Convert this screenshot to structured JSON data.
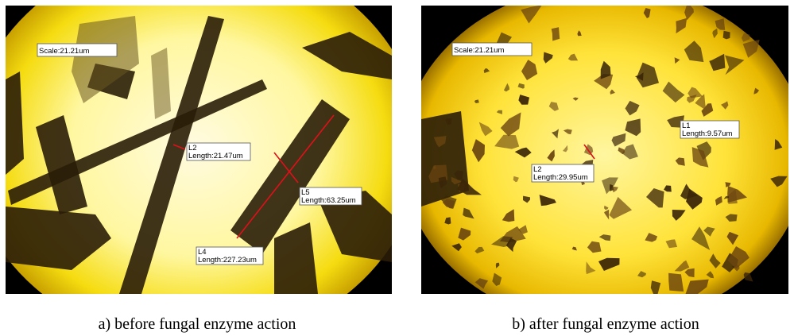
{
  "panels": [
    {
      "scale": "Scale:21.21um",
      "measurements": [
        {
          "name": "L2",
          "length": "Length:21.47um"
        },
        {
          "name": "L5",
          "length": "Length:63.25um"
        },
        {
          "name": "L4",
          "length": "Length:227.23um"
        }
      ],
      "caption": "a) before fungal enzyme action"
    },
    {
      "scale": "Scale:21.21um",
      "measurements": [
        {
          "name": "L1",
          "length": "Length:9.57um"
        },
        {
          "name": "L2",
          "length": "Length:29.95um"
        }
      ],
      "caption": "b) after fungal enzyme action"
    }
  ]
}
